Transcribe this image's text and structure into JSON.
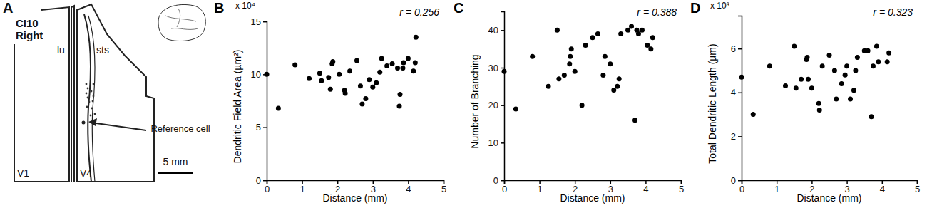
{
  "diagram": {
    "panel_label": "A",
    "title": "CI10",
    "subtitle": "Right",
    "labels": [
      "lu",
      "sts",
      "V1",
      "V4"
    ],
    "arrow_label": "Reference cell",
    "scale_bar": "5 mm"
  },
  "chart_data": [
    {
      "type": "scatter",
      "panel_label": "B",
      "x_label": "Distance (mm)",
      "y_label": "Dendritic Field Area (µm²)",
      "y_multiplier": "x 10⁴",
      "annotation": "r = 0.256",
      "color": "#000000",
      "marker": "circle",
      "x": [
        0,
        0.33,
        0.8,
        1.2,
        1.5,
        1.55,
        1.75,
        1.8,
        1.85,
        1.87,
        2.05,
        2.2,
        2.22,
        2.35,
        2.55,
        2.65,
        2.7,
        2.8,
        2.9,
        3.0,
        3.1,
        3.2,
        3.25,
        3.4,
        3.55,
        3.7,
        3.75,
        3.77,
        3.85,
        3.87,
        4.0,
        4.15,
        4.2,
        4.22
      ],
      "values": [
        10.0,
        6.8,
        10.9,
        9.6,
        10.1,
        9.4,
        9.7,
        8.6,
        11.0,
        11.2,
        10.0,
        8.5,
        8.2,
        10.3,
        11.3,
        8.9,
        7.2,
        7.7,
        9.5,
        8.8,
        9.2,
        10.2,
        11.5,
        10.8,
        11.0,
        10.6,
        7.0,
        8.1,
        10.6,
        11.1,
        11.5,
        10.3,
        11.1,
        13.5
      ],
      "xlim": [
        0,
        5
      ],
      "xticks": [
        0,
        1,
        2,
        3,
        4,
        5
      ],
      "ylim": [
        0,
        15
      ],
      "yticks": [
        0,
        5,
        10,
        15
      ]
    },
    {
      "type": "scatter",
      "panel_label": "C",
      "x_label": "Distance (mm)",
      "y_label": "Number of Branching",
      "annotation": "r = 0.388",
      "color": "#000000",
      "marker": "circle",
      "x": [
        0,
        0.33,
        0.8,
        1.25,
        1.5,
        1.55,
        1.7,
        1.85,
        1.87,
        1.9,
        2.0,
        2.2,
        2.3,
        2.5,
        2.65,
        2.8,
        2.85,
        3.0,
        3.1,
        3.2,
        3.25,
        3.3,
        3.5,
        3.6,
        3.7,
        3.75,
        3.8,
        3.9,
        4.05,
        4.15,
        4.2
      ],
      "values": [
        29,
        19,
        33,
        25,
        40,
        27,
        28,
        31,
        33,
        35,
        29,
        20,
        36,
        38,
        39,
        28,
        33,
        31,
        24,
        25,
        27,
        39,
        40,
        41,
        16,
        40,
        39,
        40,
        36,
        35,
        38
      ],
      "xlim": [
        0,
        5
      ],
      "xticks": [
        0,
        1,
        2,
        3,
        4,
        5
      ],
      "ylim": [
        0,
        45
      ],
      "yticks": [
        0,
        10,
        20,
        30,
        40
      ]
    },
    {
      "type": "scatter",
      "panel_label": "D",
      "x_label": "Distance (mm)",
      "y_label": "Total Dendritic Length (µm)",
      "y_multiplier": "x 10³",
      "annotation": "r = 0.323",
      "color": "#000000",
      "marker": "circle",
      "x": [
        0,
        0.33,
        0.8,
        1.25,
        1.5,
        1.55,
        1.7,
        1.85,
        1.87,
        1.9,
        2.0,
        2.2,
        2.22,
        2.3,
        2.5,
        2.65,
        2.7,
        2.85,
        2.95,
        3.0,
        3.1,
        3.2,
        3.25,
        3.3,
        3.5,
        3.6,
        3.7,
        3.75,
        3.85,
        3.9,
        4.15,
        4.2
      ],
      "values": [
        4.7,
        3.0,
        5.2,
        4.3,
        6.1,
        4.2,
        4.6,
        5.5,
        5.6,
        4.6,
        4.2,
        3.5,
        3.2,
        5.2,
        5.7,
        5.0,
        3.7,
        4.4,
        4.8,
        5.2,
        3.7,
        4.1,
        5.0,
        5.6,
        5.9,
        5.9,
        2.9,
        5.2,
        6.1,
        5.4,
        5.4,
        5.8
      ],
      "xlim": [
        0,
        5
      ],
      "xticks": [
        0,
        1,
        2,
        3,
        4,
        5
      ],
      "ylim": [
        0,
        7.5
      ],
      "yticks": [
        0,
        2,
        4,
        6
      ]
    }
  ]
}
